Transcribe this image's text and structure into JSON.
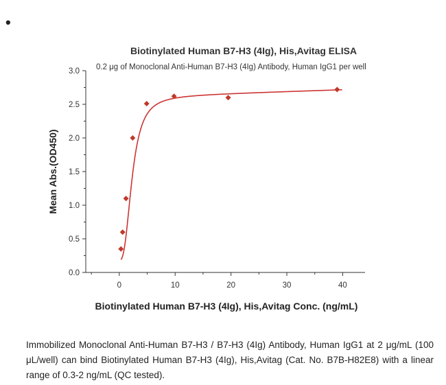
{
  "page": {
    "bullet": "•",
    "caption": "Immobilized Monoclonal Anti-Human B7-H3 / B7-H3 (4Ig) Antibody, Human IgG1 at 2 μg/mL (100 μL/well) can bind Biotinylated Human B7-H3 (4Ig), His,Avitag (Cat. No. B7B-H82E8) with a linear range of 0.3-2 ng/mL (QC tested)."
  },
  "chart_data": {
    "type": "scatter",
    "title": "Biotinylated Human B7-H3 (4Ig), His,Avitag ELISA",
    "subtitle": "0.2 μg of Monoclonal Anti-Human B7-H3 (4Ig) Antibody, Human IgG1 per well",
    "xlabel": "Biotinylated Human B7-H3 (4Ig), His,Avitag Conc. (ng/mL)",
    "ylabel": "Mean Abs.(OD450)",
    "xlim": [
      -6,
      44
    ],
    "ylim": [
      0,
      3.0
    ],
    "xticks": [
      0,
      10,
      20,
      30,
      40
    ],
    "yticks": [
      "0.0",
      "0.5",
      "1.0",
      "1.5",
      "2.0",
      "2.5",
      "3.0"
    ],
    "marker_color": "#c0392b",
    "line_color": "#cc3333",
    "fit": "four-parameter logistic",
    "series": [
      {
        "x": [
          0.3,
          0.6,
          1.2,
          2.4,
          4.9,
          9.8,
          19.5,
          39
        ],
        "y": [
          0.35,
          0.6,
          1.1,
          2.0,
          2.51,
          2.62,
          2.6,
          2.72
        ]
      }
    ]
  }
}
